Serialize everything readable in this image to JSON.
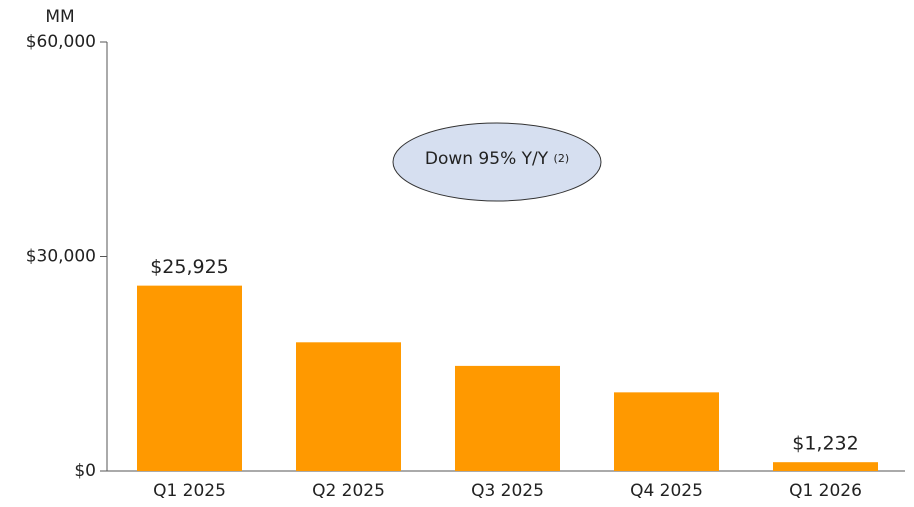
{
  "chart_data": {
    "type": "bar",
    "y_unit": "MM",
    "annotation": "Down 95% Y/Y",
    "annotation_note": "(2)",
    "categories": [
      "Q1 2025",
      "Q2 2025",
      "Q3 2025",
      "Q4 2025",
      "Q1 2026"
    ],
    "values": [
      25925,
      18000,
      14700,
      11000,
      1232
    ],
    "value_labels": [
      "$25,925",
      null,
      null,
      null,
      "$1,232"
    ],
    "color": "#ff9900",
    "ylim": [
      0,
      60000
    ],
    "yticks": [
      {
        "value": 0,
        "label": "$0"
      },
      {
        "value": 30000,
        "label": "$30,000"
      },
      {
        "value": 60000,
        "label": "$60,000"
      }
    ]
  }
}
